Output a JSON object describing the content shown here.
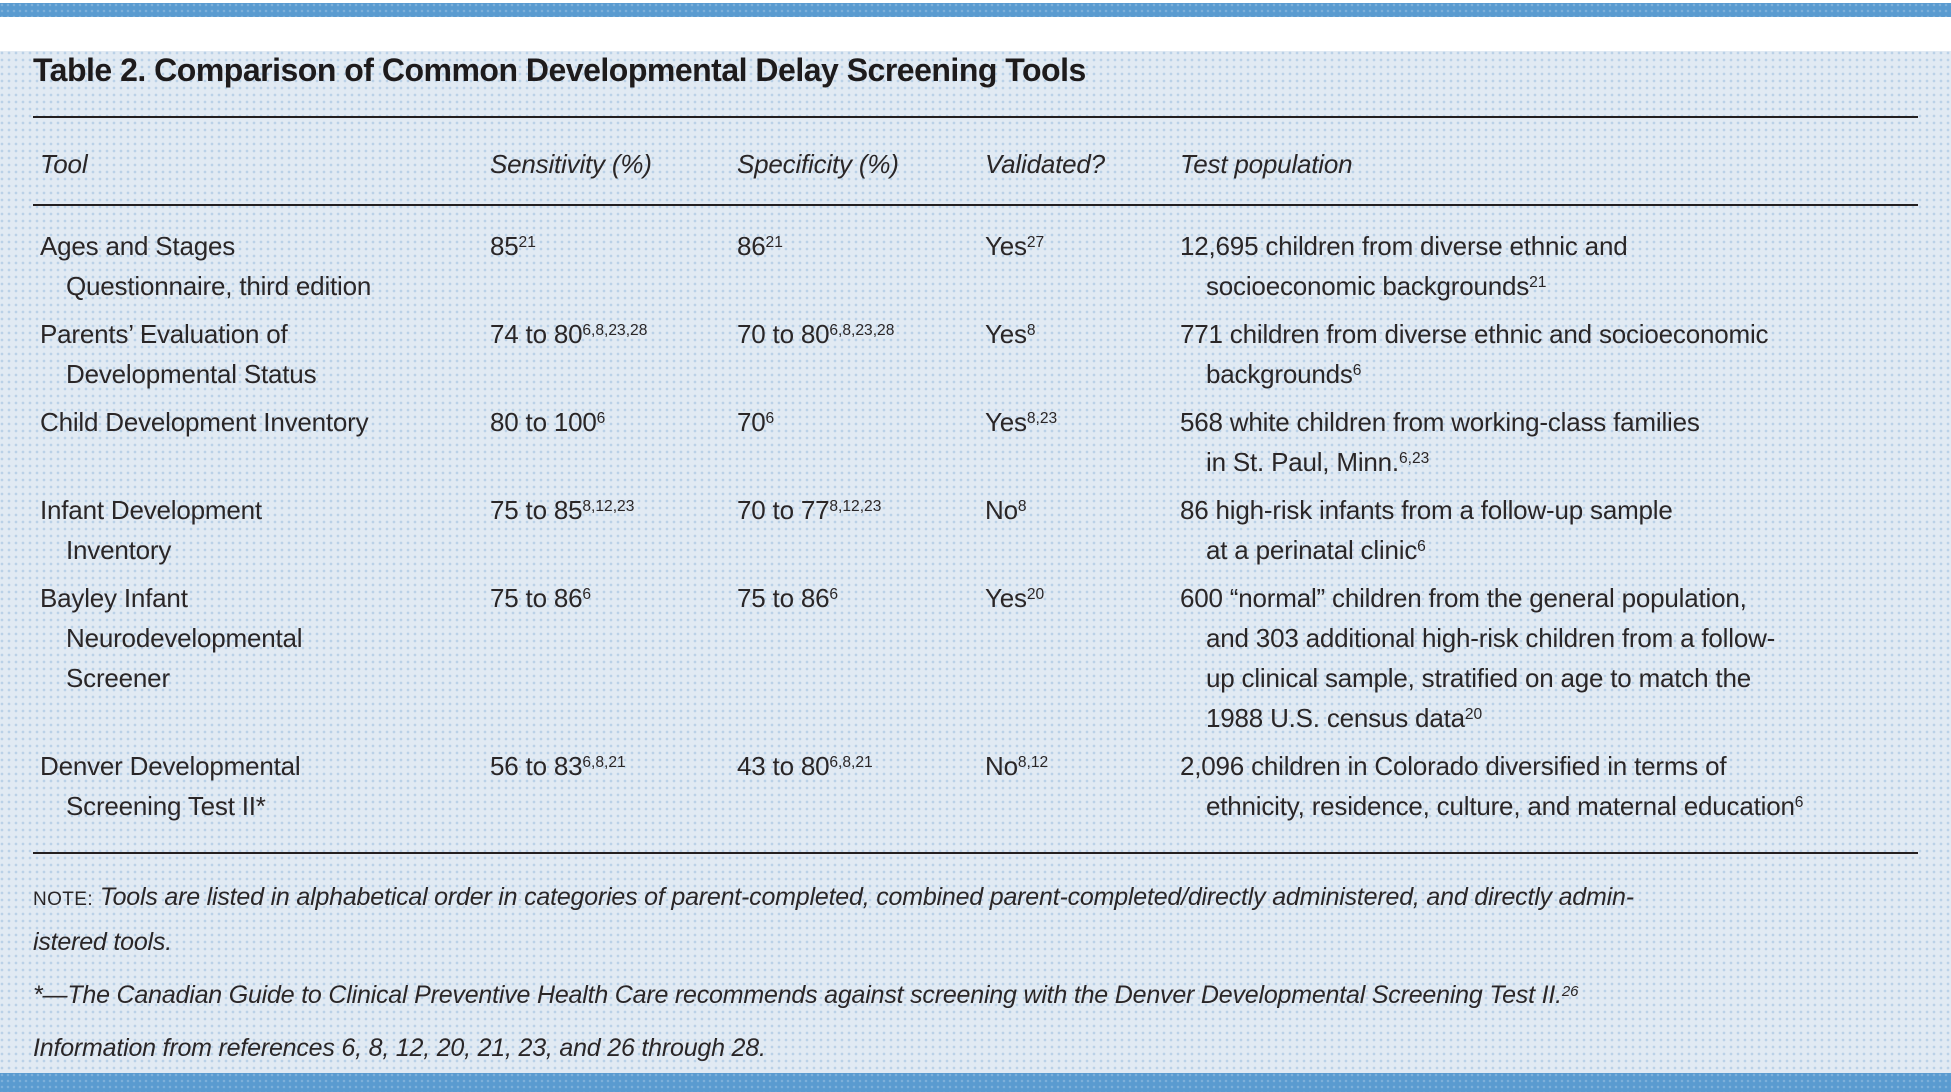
{
  "colors": {
    "bar_blue": "#5a9bd0",
    "panel_bg": "#e1eaf3",
    "text": "#2a2627",
    "rule": "#231f20"
  },
  "table": {
    "title": "Table 2. Comparison of Common Developmental Delay Screening Tools",
    "columns": [
      "Tool",
      "Sensitivity (%)",
      "Specificity (%)",
      "Validated?",
      "Test population"
    ],
    "rows": [
      {
        "tool": "Ages and Stages\nQuestionnaire, third edition",
        "sensitivity": "85^{21}",
        "specificity": "86^{21}",
        "validated": "Yes^{27}",
        "population": "12,695 children from diverse ethnic and\nsocioeconomic backgrounds^{21}"
      },
      {
        "tool": "Parents’ Evaluation of\nDevelopmental Status",
        "sensitivity": "74 to 80^{6,8,23,28}",
        "specificity": "70 to 80^{6,8,23,28}",
        "validated": "Yes^{8}",
        "population": "771 children from diverse ethnic and socioeconomic\nbackgrounds^{6}"
      },
      {
        "tool": "Child Development Inventory",
        "sensitivity": "80 to 100^{6}",
        "specificity": "70^{6}",
        "validated": "Yes^{8,23}",
        "population": "568 white children from working-class families\nin St. Paul, Minn.^{6,23}"
      },
      {
        "tool": "Infant Development\nInventory",
        "sensitivity": "75 to 85^{8,12,23}",
        "specificity": "70 to 77^{8,12,23}",
        "validated": "No^{8}",
        "population": "86 high-risk infants from a follow-up sample\nat a perinatal clinic^{6}"
      },
      {
        "tool": "Bayley Infant\nNeurodevelopmental\nScreener",
        "sensitivity": "75 to 86^{6}",
        "specificity": "75 to 86^{6}",
        "validated": "Yes^{20}",
        "population": "600 “normal” children from the general population,\nand 303 additional high-risk children from a follow-\nup clinical sample, stratified on age to match the\n1988 U.S. census data^{20}"
      },
      {
        "tool": "Denver Developmental\nScreening Test II*",
        "sensitivity": "56 to 83^{6,8,21}",
        "specificity": "43 to 80^{6,8,21}",
        "validated": "No^{8,12}",
        "population": "2,096 children in Colorado diversified in terms of\nethnicity, residence, culture, and maternal education^{6}"
      }
    ]
  },
  "notes": {
    "note_label": "NOTE:",
    "note_text": "Tools are listed in alphabetical order in categories of parent-completed, combined parent-completed/directly administered, and directly admin-\nistered tools.",
    "footnote": "*—The Canadian Guide to Clinical Preventive Health Care recommends against screening with the Denver Developmental Screening Test II.^{26}",
    "source": "Information from references 6, 8, 12, 20, 21, 23, and 26 through 28."
  }
}
